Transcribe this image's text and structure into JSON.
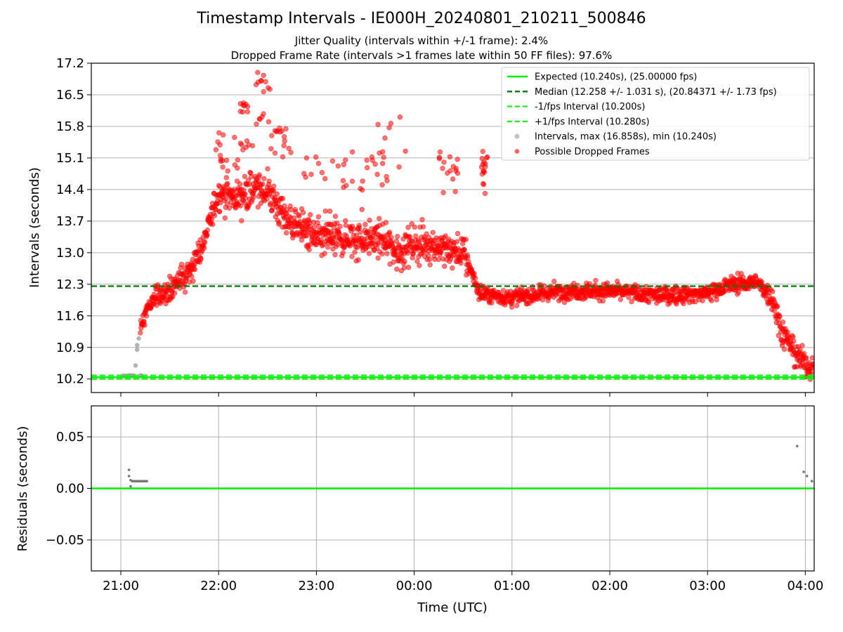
{
  "title": "Timestamp Intervals - IE000H_20240801_210211_500846",
  "subtitle_1": "Jitter Quality (intervals within +/-1 frame): 2.4%",
  "subtitle_2": "Dropped Frame Rate (intervals >1 frames late within 50 FF files): 97.6%",
  "colors": {
    "expected": "#00ee00",
    "median": "#007700",
    "interval_band": "#22ee22",
    "normal_points": "#999999",
    "dropped_points": "#ff0000",
    "residual_points": "#777777",
    "grid": "#b0b0b0"
  },
  "chart_data": [
    {
      "type": "scatter",
      "panel": "intervals",
      "xlabel": "",
      "ylabel": "Intervals (seconds)",
      "ylim": [
        9.9,
        17.2
      ],
      "xlim": [
        "20:42",
        "04:05"
      ],
      "y_ticks": [
        "10.2",
        "10.9",
        "11.6",
        "12.3",
        "13.0",
        "13.7",
        "14.4",
        "15.1",
        "15.8",
        "16.5",
        "17.2"
      ],
      "grid": "horizontal",
      "legend_position": "top-right",
      "legend": [
        {
          "label": "Expected (10.240s), (25.00000 fps)",
          "style": "solid-line"
        },
        {
          "label": "Median (12.258 +/- 1.031 s), (20.84371 +/- 1.73 fps)",
          "style": "dashed-line"
        },
        {
          "label": "-1/fps Interval (10.200s)",
          "style": "dashed-line"
        },
        {
          "label": "+1/fps Interval (10.280s)",
          "style": "dashed-line"
        },
        {
          "label": "Intervals, max (16.858s), min (10.240s)",
          "style": "marker"
        },
        {
          "label": "Possible Dropped Frames",
          "style": "marker"
        }
      ],
      "reference_lines": {
        "expected": 10.24,
        "median": 12.258,
        "minus_one_frame": 10.2,
        "plus_one_frame": 10.28
      },
      "series": [
        {
          "name": "Intervals, max (16.858s), min (10.240s)",
          "points": [
            [
              "21:01",
              10.27
            ],
            [
              "21:02",
              10.27
            ],
            [
              "21:03",
              10.27
            ],
            [
              "21:04",
              10.27
            ],
            [
              "21:05",
              10.28
            ],
            [
              "21:06",
              10.28
            ],
            [
              "21:07",
              10.27
            ],
            [
              "21:08",
              10.28
            ],
            [
              "21:09",
              10.5
            ],
            [
              "21:10",
              10.85
            ],
            [
              "21:10",
              10.95
            ],
            [
              "21:11",
              11.1
            ],
            [
              "21:12",
              10.28
            ],
            [
              "21:13",
              10.27
            ]
          ]
        },
        {
          "name": "Possible Dropped Frames",
          "trend": [
            [
              "21:12",
              11.3
            ],
            [
              "21:16",
              11.75
            ],
            [
              "21:20",
              12.0
            ],
            [
              "21:30",
              12.15
            ],
            [
              "21:40",
              12.5
            ],
            [
              "21:50",
              13.1
            ],
            [
              "22:00",
              14.35
            ],
            [
              "22:10",
              14.2
            ],
            [
              "22:20",
              14.4
            ],
            [
              "22:30",
              14.4
            ],
            [
              "22:40",
              13.8
            ],
            [
              "23:00",
              13.3
            ],
            [
              "23:20",
              13.3
            ],
            [
              "23:40",
              13.3
            ],
            [
              "23:50",
              13.0
            ],
            [
              "23:55",
              13.15
            ],
            [
              "00:10",
              13.2
            ],
            [
              "00:20",
              13.05
            ],
            [
              "00:30",
              13.0
            ],
            [
              "00:35",
              12.6
            ],
            [
              "00:40",
              12.1
            ],
            [
              "01:00",
              12.0
            ],
            [
              "01:30",
              12.15
            ],
            [
              "02:00",
              12.15
            ],
            [
              "02:30",
              12.05
            ],
            [
              "03:00",
              12.1
            ],
            [
              "03:15",
              12.3
            ],
            [
              "03:30",
              12.35
            ],
            [
              "03:40",
              12.0
            ],
            [
              "03:45",
              11.3
            ],
            [
              "03:55",
              10.7
            ],
            [
              "04:05",
              10.4
            ]
          ],
          "outlier_bands": [
            {
              "from": "21:58",
              "to": "22:12",
              "values": [
                15.0,
                15.5,
                14.9
              ]
            },
            {
              "from": "22:13",
              "to": "22:22",
              "values": [
                15.4,
                16.2
              ]
            },
            {
              "from": "22:22",
              "to": "22:32",
              "values": [
                16.6,
                16.8,
                16.0
              ]
            },
            {
              "from": "22:32",
              "to": "22:45",
              "values": [
                15.7,
                15.3
              ]
            },
            {
              "from": "22:50",
              "to": "23:10",
              "values": [
                15.05,
                14.7,
                13.8
              ]
            },
            {
              "from": "23:10",
              "to": "23:35",
              "values": [
                15.2,
                14.9,
                14.5,
                13.9
              ]
            },
            {
              "from": "23:35",
              "to": "23:55",
              "values": [
                15.3,
                15.0,
                14.6,
                15.85
              ]
            },
            {
              "from": "00:15",
              "to": "00:30",
              "values": [
                15.1,
                14.8,
                14.4
              ]
            },
            {
              "from": "00:40",
              "to": "00:45",
              "values": [
                15.1,
                14.8,
                14.4
              ]
            }
          ]
        }
      ]
    },
    {
      "type": "scatter",
      "panel": "residuals",
      "xlabel": "Time (UTC)",
      "ylabel": "Residuals (seconds)",
      "ylim": [
        -0.08,
        0.08
      ],
      "y_ticks": [
        "0.05",
        "0.00",
        "−0.05"
      ],
      "x_ticks": [
        "21:00",
        "22:00",
        "23:00",
        "00:00",
        "01:00",
        "02:00",
        "03:00",
        "04:00"
      ],
      "grid": "both",
      "reference_line": 0.0,
      "series": [
        {
          "name": "",
          "points": [
            [
              "21:05",
              0.018
            ],
            [
              "21:05",
              0.012
            ],
            [
              "21:06",
              0.008
            ],
            [
              "21:06",
              0.002
            ],
            [
              "21:07",
              0.007
            ],
            [
              "21:08",
              0.007
            ],
            [
              "21:09",
              0.007
            ],
            [
              "21:10",
              0.007
            ],
            [
              "21:11",
              0.007
            ],
            [
              "21:12",
              0.007
            ],
            [
              "21:13",
              0.007
            ],
            [
              "21:14",
              0.007
            ],
            [
              "21:15",
              0.007
            ],
            [
              "21:16",
              0.007
            ],
            [
              "03:55",
              0.041
            ],
            [
              "03:59",
              0.016
            ],
            [
              "04:01",
              0.012
            ],
            [
              "04:04",
              0.007
            ]
          ]
        }
      ]
    }
  ]
}
